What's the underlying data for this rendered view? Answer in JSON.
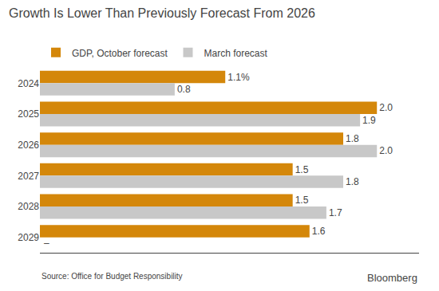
{
  "chart_data": {
    "type": "bar",
    "orientation": "horizontal",
    "title": "Growth Is Lower Than Previously Forecast From 2026",
    "categories": [
      "2024",
      "2025",
      "2026",
      "2027",
      "2028",
      "2029"
    ],
    "series": [
      {
        "name": "GDP, October forecast",
        "color": "#D4870A",
        "values": [
          1.1,
          2.0,
          1.8,
          1.5,
          1.5,
          1.6
        ],
        "value_labels": [
          "1.1%",
          "2.0",
          "1.8",
          "1.5",
          "1.5",
          "1.6"
        ]
      },
      {
        "name": "March forecast",
        "color": "#C8C8C8",
        "values": [
          0.8,
          1.9,
          2.0,
          1.8,
          1.7,
          null
        ],
        "value_labels": [
          "0.8",
          "1.9",
          "2.0",
          "1.8",
          "1.7",
          "–"
        ]
      }
    ],
    "xlim": [
      0,
      2.25
    ],
    "data_labels": true,
    "tick_labels": "y",
    "grid": false,
    "legend": "upper left",
    "annotations": [
      "Source: Office for Budget Responsibility",
      "Bloomberg"
    ]
  }
}
